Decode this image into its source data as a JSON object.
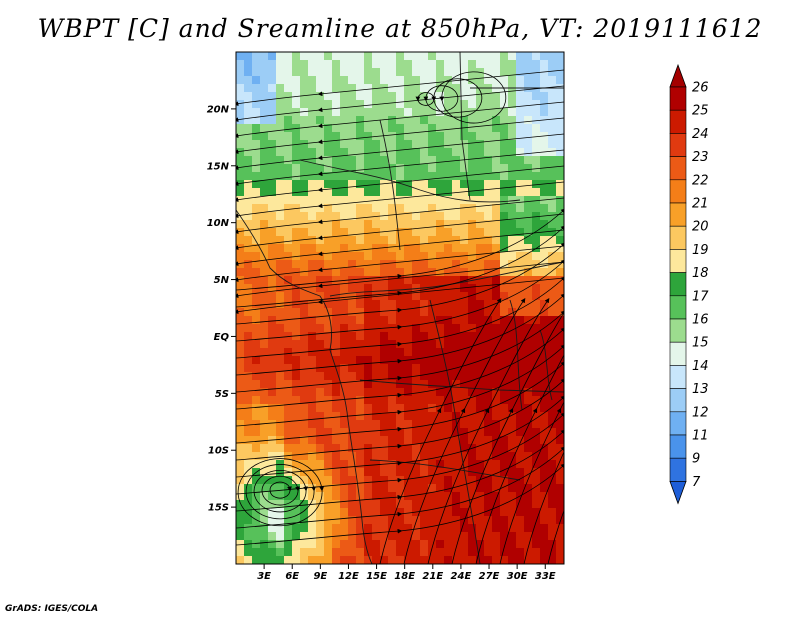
{
  "title": "WBPT [C] and Sreamline at 850hPa, VT: 2019111612",
  "credit": "GrADS: IGES/COLA",
  "map": {
    "lon_range": [
      0,
      35
    ],
    "lat_range": [
      -20,
      25
    ],
    "lat_ticks": [
      {
        "value": 20,
        "label": "20N"
      },
      {
        "value": 15,
        "label": "15N"
      },
      {
        "value": 10,
        "label": "10N"
      },
      {
        "value": 5,
        "label": "5N"
      },
      {
        "value": 0,
        "label": "EQ"
      },
      {
        "value": -5,
        "label": "5S"
      },
      {
        "value": -10,
        "label": "10S"
      },
      {
        "value": -15,
        "label": "15S"
      }
    ],
    "lon_ticks": [
      {
        "value": 3,
        "label": "3E"
      },
      {
        "value": 6,
        "label": "6E"
      },
      {
        "value": 9,
        "label": "9E"
      },
      {
        "value": 12,
        "label": "12E"
      },
      {
        "value": 15,
        "label": "15E"
      },
      {
        "value": 18,
        "label": "18E"
      },
      {
        "value": 21,
        "label": "21E"
      },
      {
        "value": 24,
        "label": "24E"
      },
      {
        "value": 27,
        "label": "27E"
      },
      {
        "value": 30,
        "label": "30E"
      },
      {
        "value": 33,
        "label": "33E"
      }
    ]
  },
  "colorbar": {
    "labels": [
      "26",
      "25",
      "24",
      "23",
      "22",
      "21",
      "20",
      "19",
      "18",
      "17",
      "16",
      "15",
      "14",
      "13",
      "12",
      "11",
      "9",
      "7"
    ],
    "colors": [
      "#b00000",
      "#cc1a00",
      "#e03a10",
      "#ec5a16",
      "#f47e18",
      "#f8a028",
      "#fcc860",
      "#fde89c",
      "#2ea53b",
      "#57c15a",
      "#9cdc8e",
      "#e4f6ea",
      "#c8e6fb",
      "#9ccdf6",
      "#6fb0f2",
      "#4a93eb",
      "#2f73e0"
    ],
    "top_arrow_color": "#a40000",
    "bottom_arrow_color": "#1e5ed8"
  }
}
